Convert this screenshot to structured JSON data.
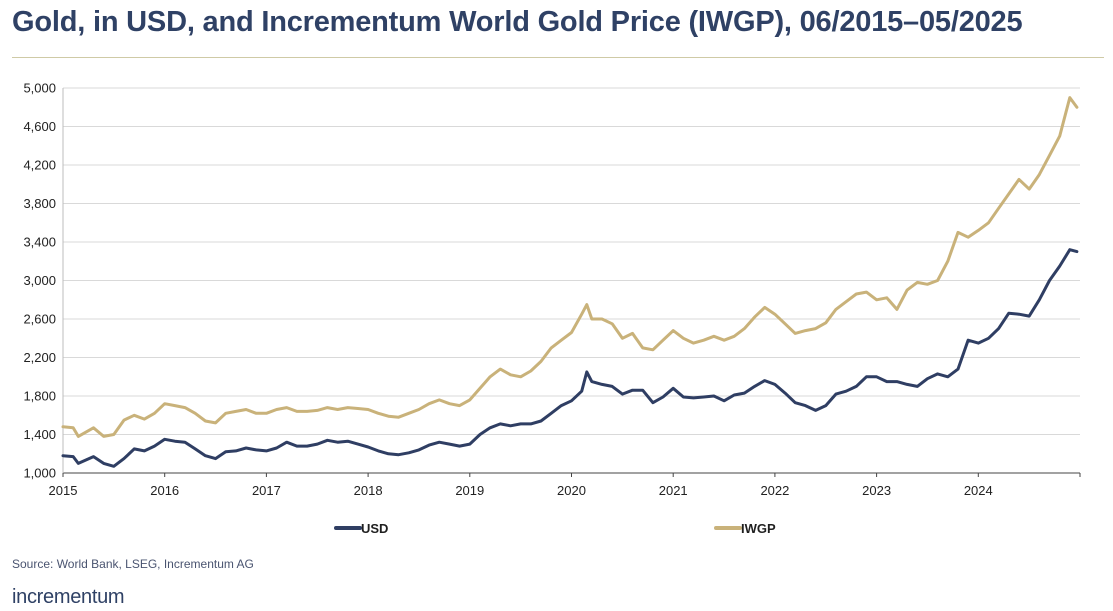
{
  "title": "Gold, in USD, and Incrementum World Gold Price (IWGP), 06/2015–05/2025",
  "source": "Source: World Bank, LSEG, Incrementum AG",
  "logo": "incrementum",
  "chart_data": {
    "type": "line",
    "title": "Gold, in USD, and Incrementum World Gold Price (IWGP), 06/2015–05/2025",
    "xlabel": "",
    "ylabel": "",
    "xlim": [
      2015.0,
      2025.0
    ],
    "ylim": [
      1000,
      5000
    ],
    "x_ticks": [
      "2015",
      "2016",
      "2017",
      "2018",
      "2019",
      "2020",
      "2021",
      "2022",
      "2023",
      "2024"
    ],
    "y_ticks": [
      "1,000",
      "1,400",
      "1,800",
      "2,200",
      "2,600",
      "3,000",
      "3,400",
      "3,800",
      "4,200",
      "4,600",
      "5,000"
    ],
    "grid": "horizontal",
    "legend_position": "bottom",
    "series": [
      {
        "name": "USD",
        "color": "#2f3e63",
        "x": [
          2015.0,
          2015.1,
          2015.15,
          2015.3,
          2015.4,
          2015.5,
          2015.6,
          2015.7,
          2015.8,
          2015.9,
          2016.0,
          2016.1,
          2016.2,
          2016.3,
          2016.4,
          2016.5,
          2016.6,
          2016.7,
          2016.8,
          2016.9,
          2017.0,
          2017.1,
          2017.2,
          2017.3,
          2017.4,
          2017.5,
          2017.6,
          2017.7,
          2017.8,
          2017.9,
          2018.0,
          2018.1,
          2018.2,
          2018.3,
          2018.4,
          2018.5,
          2018.6,
          2018.7,
          2018.8,
          2018.9,
          2019.0,
          2019.1,
          2019.2,
          2019.3,
          2019.4,
          2019.5,
          2019.6,
          2019.7,
          2019.8,
          2019.9,
          2020.0,
          2020.1,
          2020.15,
          2020.2,
          2020.3,
          2020.4,
          2020.5,
          2020.6,
          2020.7,
          2020.8,
          2020.9,
          2021.0,
          2021.1,
          2021.2,
          2021.3,
          2021.4,
          2021.5,
          2021.6,
          2021.7,
          2021.8,
          2021.9,
          2022.0,
          2022.1,
          2022.2,
          2022.3,
          2022.4,
          2022.5,
          2022.6,
          2022.7,
          2022.8,
          2022.9,
          2023.0,
          2023.1,
          2023.2,
          2023.3,
          2023.4,
          2023.5,
          2023.6,
          2023.7,
          2023.8,
          2023.9,
          2024.0,
          2024.1,
          2024.2,
          2024.3,
          2024.4,
          2024.5,
          2024.6,
          2024.7,
          2024.8,
          2024.9,
          2024.97
        ],
        "values": [
          1180,
          1170,
          1100,
          1170,
          1100,
          1070,
          1150,
          1250,
          1230,
          1280,
          1350,
          1330,
          1320,
          1250,
          1180,
          1150,
          1220,
          1230,
          1260,
          1240,
          1230,
          1260,
          1320,
          1280,
          1280,
          1300,
          1340,
          1320,
          1330,
          1300,
          1270,
          1230,
          1200,
          1190,
          1210,
          1240,
          1290,
          1320,
          1300,
          1280,
          1300,
          1400,
          1470,
          1510,
          1490,
          1510,
          1510,
          1540,
          1620,
          1700,
          1750,
          1850,
          2050,
          1950,
          1920,
          1900,
          1820,
          1860,
          1860,
          1730,
          1790,
          1880,
          1790,
          1780,
          1790,
          1800,
          1750,
          1810,
          1830,
          1900,
          1960,
          1920,
          1830,
          1730,
          1700,
          1650,
          1700,
          1820,
          1850,
          1900,
          2000,
          2000,
          1950,
          1950,
          1920,
          1900,
          1980,
          2030,
          2000,
          2080,
          2380,
          2350,
          2400,
          2500,
          2660,
          2650,
          2630,
          2800,
          3000,
          3150,
          3320,
          3300
        ]
      },
      {
        "name": "IWGP",
        "color": "#c9b27a",
        "x": [
          2015.0,
          2015.1,
          2015.15,
          2015.3,
          2015.4,
          2015.5,
          2015.6,
          2015.7,
          2015.8,
          2015.9,
          2016.0,
          2016.1,
          2016.2,
          2016.3,
          2016.4,
          2016.5,
          2016.6,
          2016.7,
          2016.8,
          2016.9,
          2017.0,
          2017.1,
          2017.2,
          2017.3,
          2017.4,
          2017.5,
          2017.6,
          2017.7,
          2017.8,
          2017.9,
          2018.0,
          2018.1,
          2018.2,
          2018.3,
          2018.4,
          2018.5,
          2018.6,
          2018.7,
          2018.8,
          2018.9,
          2019.0,
          2019.1,
          2019.2,
          2019.3,
          2019.4,
          2019.5,
          2019.6,
          2019.7,
          2019.8,
          2019.9,
          2020.0,
          2020.1,
          2020.15,
          2020.2,
          2020.3,
          2020.4,
          2020.5,
          2020.6,
          2020.7,
          2020.8,
          2020.9,
          2021.0,
          2021.1,
          2021.2,
          2021.3,
          2021.4,
          2021.5,
          2021.6,
          2021.7,
          2021.8,
          2021.9,
          2022.0,
          2022.1,
          2022.2,
          2022.3,
          2022.4,
          2022.5,
          2022.6,
          2022.7,
          2022.8,
          2022.9,
          2023.0,
          2023.1,
          2023.2,
          2023.3,
          2023.4,
          2023.5,
          2023.6,
          2023.7,
          2023.8,
          2023.9,
          2024.0,
          2024.1,
          2024.2,
          2024.3,
          2024.4,
          2024.5,
          2024.6,
          2024.7,
          2024.8,
          2024.9,
          2024.97
        ],
        "values": [
          1480,
          1470,
          1380,
          1470,
          1380,
          1400,
          1550,
          1600,
          1560,
          1620,
          1720,
          1700,
          1680,
          1620,
          1540,
          1520,
          1620,
          1640,
          1660,
          1620,
          1620,
          1660,
          1680,
          1640,
          1640,
          1650,
          1680,
          1660,
          1680,
          1670,
          1660,
          1620,
          1590,
          1580,
          1620,
          1660,
          1720,
          1760,
          1720,
          1700,
          1760,
          1880,
          2000,
          2080,
          2020,
          2000,
          2060,
          2160,
          2300,
          2380,
          2460,
          2650,
          2750,
          2600,
          2600,
          2550,
          2400,
          2450,
          2300,
          2280,
          2380,
          2480,
          2400,
          2350,
          2380,
          2420,
          2380,
          2420,
          2500,
          2620,
          2720,
          2650,
          2550,
          2450,
          2480,
          2500,
          2560,
          2700,
          2780,
          2860,
          2880,
          2800,
          2820,
          2700,
          2900,
          2980,
          2960,
          3000,
          3200,
          3500,
          3450,
          3520,
          3600,
          3750,
          3900,
          4050,
          3950,
          4100,
          4300,
          4500,
          4900,
          4800
        ]
      }
    ]
  }
}
